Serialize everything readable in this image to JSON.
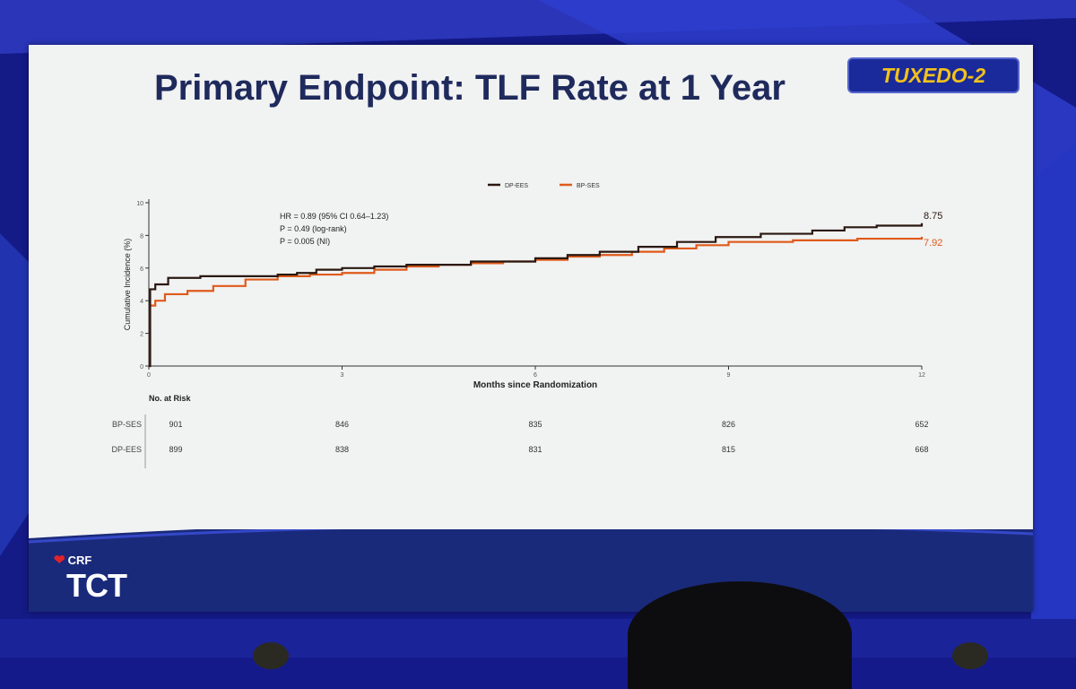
{
  "slide": {
    "title": "Primary Endpoint: TLF Rate at 1 Year",
    "badge": "TUXEDO-2",
    "logo_crf": "CRF",
    "logo_tct": "TCT"
  },
  "colors": {
    "dp_ees": "#2a1810",
    "bp_ses": "#e05a1a",
    "title": "#1f2a5c",
    "badge_bg": "#1a2a9a",
    "badge_text": "#f2c21a"
  },
  "chart_data": {
    "type": "line",
    "xlabel": "Months since Randomization",
    "ylabel": "Cumulative Incidence (%)",
    "xlim": [
      0,
      12
    ],
    "ylim": [
      0,
      10
    ],
    "xticks": [
      "0",
      "3",
      "6",
      "9",
      "12"
    ],
    "yticks": [
      "0",
      "2",
      "4",
      "6",
      "8",
      "10"
    ],
    "legend_position": "top-center",
    "annotations": [
      "HR = 0.89 (95% CI 0.64–1.23)",
      "P = 0.49 (log-rank)",
      "P = 0.005 (NI)"
    ],
    "series": [
      {
        "name": "DP-EES",
        "end_label": "8.75",
        "x": [
          0,
          0.02,
          0.1,
          0.3,
          0.8,
          1.5,
          2.0,
          2.3,
          2.6,
          3.0,
          3.5,
          4.0,
          5.0,
          6.0,
          6.5,
          7.0,
          7.6,
          8.2,
          8.8,
          9.5,
          10.3,
          10.8,
          11.3,
          12.0
        ],
        "y": [
          0,
          4.7,
          5.0,
          5.4,
          5.5,
          5.5,
          5.6,
          5.7,
          5.9,
          6.0,
          6.1,
          6.2,
          6.4,
          6.6,
          6.8,
          7.0,
          7.3,
          7.6,
          7.9,
          8.1,
          8.3,
          8.5,
          8.6,
          8.75
        ]
      },
      {
        "name": "BP-SES",
        "end_label": "7.92",
        "x": [
          0,
          0.02,
          0.1,
          0.25,
          0.6,
          1.0,
          1.5,
          2.0,
          2.5,
          3.0,
          3.5,
          4.0,
          4.5,
          5.0,
          5.5,
          6.0,
          6.5,
          7.0,
          7.5,
          8.0,
          8.5,
          9.0,
          10.0,
          11.0,
          12.0
        ],
        "y": [
          0,
          3.7,
          4.0,
          4.4,
          4.6,
          4.9,
          5.3,
          5.5,
          5.6,
          5.7,
          5.9,
          6.1,
          6.2,
          6.3,
          6.4,
          6.5,
          6.7,
          6.8,
          7.0,
          7.2,
          7.4,
          7.6,
          7.7,
          7.8,
          7.92
        ]
      }
    ],
    "risk_table": {
      "header": "No. at Risk",
      "rows": [
        {
          "label": "BP-SES",
          "values": [
            "901",
            "846",
            "835",
            "826",
            "652"
          ]
        },
        {
          "label": "DP-EES",
          "values": [
            "899",
            "838",
            "831",
            "815",
            "668"
          ]
        }
      ]
    }
  }
}
